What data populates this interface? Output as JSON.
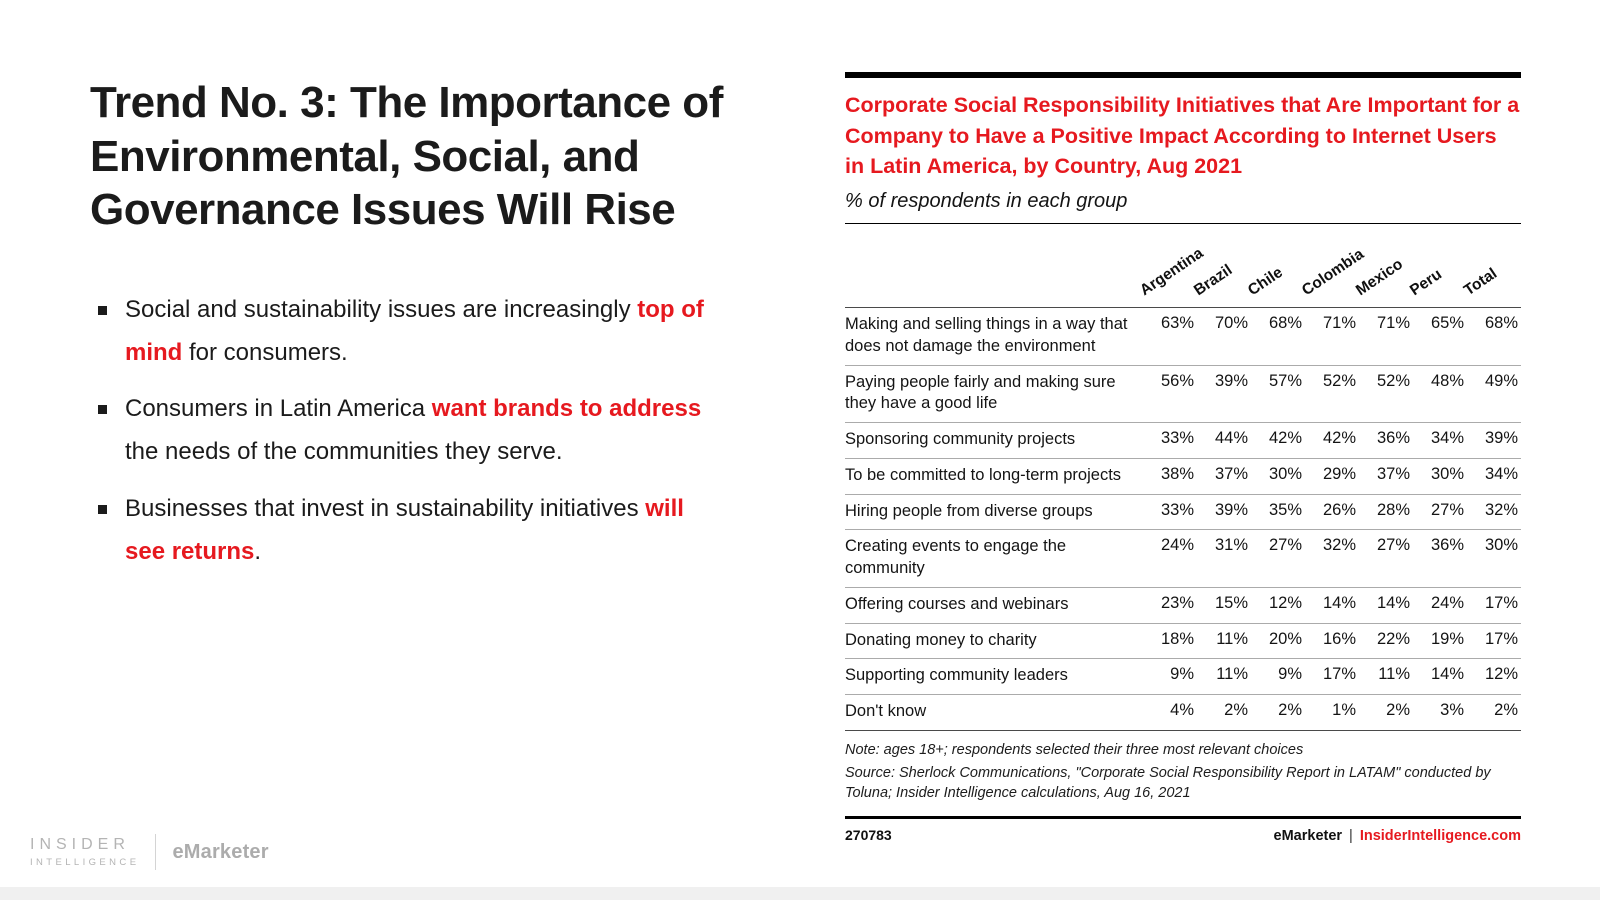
{
  "colors": {
    "accent_red": "#E6191F",
    "text_dark": "#1B1B1B",
    "brand_gray": "#B4B4B4"
  },
  "slide": {
    "title": "Trend No. 3: The Importance of Environmental, Social, and Governance Issues Will Rise",
    "bullets": [
      {
        "pre": "Social and sustainability issues are increasingly ",
        "highlight": "top of mind",
        "post": " for consumers."
      },
      {
        "pre": "Consumers in Latin America ",
        "highlight": "want brands to address",
        "post": " the needs of the communities they serve."
      },
      {
        "pre": "Businesses that invest in sustainability initiatives ",
        "highlight": "will see returns",
        "post": "."
      }
    ]
  },
  "brand_footer": {
    "insider_line1": "INSIDER",
    "insider_line2": "INTELLIGENCE",
    "emarketer": "eMarketer"
  },
  "chart": {
    "title": "Corporate Social Responsibility Initiatives that Are Important for a Company to Have a Positive Impact According to Internet Users in Latin America, by Country, Aug 2021",
    "subtitle": "% of respondents in each group",
    "note": "Note: ages 18+; respondents selected their three most relevant choices",
    "source": "Source: Sherlock Communications, \"Corporate Social Responsibility Report in LATAM\" conducted by Toluna; Insider Intelligence calculations, Aug 16, 2021",
    "footer_id": "270783",
    "footer_brand": "eMarketer",
    "footer_divider": "|",
    "footer_site": "InsiderIntelligence.com"
  },
  "chart_data": {
    "type": "table",
    "title": "Corporate Social Responsibility Initiatives that Are Important for a Company to Have a Positive Impact According to Internet Users in Latin America, by Country, Aug 2021",
    "subtitle": "% of respondents in each group",
    "unit": "%",
    "columns": [
      "Argentina",
      "Brazil",
      "Chile",
      "Colombia",
      "Mexico",
      "Peru",
      "Total"
    ],
    "rows": [
      {
        "label": "Making and selling things in a way that does not damage the environment",
        "values": [
          63,
          70,
          68,
          71,
          71,
          65,
          68
        ]
      },
      {
        "label": "Paying people fairly and making sure they have a good life",
        "values": [
          56,
          39,
          57,
          52,
          52,
          48,
          49
        ]
      },
      {
        "label": "Sponsoring community projects",
        "values": [
          33,
          44,
          42,
          42,
          36,
          34,
          39
        ]
      },
      {
        "label": "To be committed to long-term projects",
        "values": [
          38,
          37,
          30,
          29,
          37,
          30,
          34
        ]
      },
      {
        "label": "Hiring people from diverse groups",
        "values": [
          33,
          39,
          35,
          26,
          28,
          27,
          32
        ]
      },
      {
        "label": "Creating events to engage the community",
        "values": [
          24,
          31,
          27,
          32,
          27,
          36,
          30
        ]
      },
      {
        "label": "Offering courses and webinars",
        "values": [
          23,
          15,
          12,
          14,
          14,
          24,
          17
        ]
      },
      {
        "label": "Donating money to charity",
        "values": [
          18,
          11,
          20,
          16,
          22,
          19,
          17
        ]
      },
      {
        "label": "Supporting community leaders",
        "values": [
          9,
          11,
          9,
          17,
          11,
          14,
          12
        ]
      },
      {
        "label": "Don't know",
        "values": [
          4,
          2,
          2,
          1,
          2,
          3,
          2
        ]
      }
    ],
    "note": "Note: ages 18+; respondents selected their three most relevant choices",
    "source": "Source: Sherlock Communications, \"Corporate Social Responsibility Report in LATAM\" conducted by Toluna; Insider Intelligence calculations, Aug 16, 2021"
  }
}
